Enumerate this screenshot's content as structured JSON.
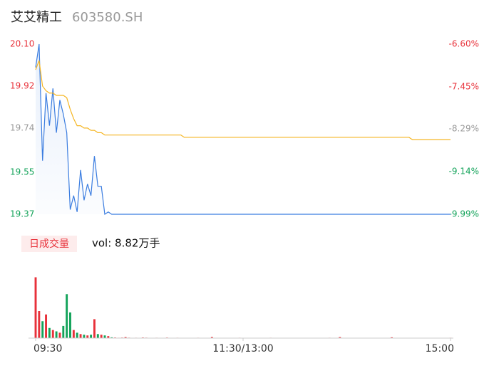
{
  "chart_data": {
    "type": "line",
    "title": "艾艾精工",
    "subtitle": "603580.SH",
    "categories": [
      "09:30",
      null,
      null,
      null,
      null,
      null,
      null,
      null,
      null,
      null,
      null,
      null,
      null,
      null,
      null,
      null,
      null,
      null,
      null,
      null,
      null,
      null,
      null,
      null,
      null,
      null,
      null,
      null,
      null,
      null,
      null,
      null,
      null,
      null,
      null,
      null,
      null,
      null,
      null,
      null,
      null,
      null,
      null,
      null,
      null,
      null,
      null,
      null,
      null,
      null,
      null,
      null,
      null,
      null,
      null,
      null,
      null,
      null,
      null,
      null,
      "11:30/13:00",
      null,
      null,
      null,
      null,
      null,
      null,
      null,
      null,
      null,
      null,
      null,
      null,
      null,
      null,
      null,
      null,
      null,
      null,
      null,
      null,
      null,
      null,
      null,
      null,
      null,
      null,
      null,
      null,
      null,
      null,
      null,
      null,
      null,
      null,
      null,
      null,
      null,
      null,
      null,
      null,
      null,
      null,
      null,
      null,
      null,
      null,
      null,
      null,
      null,
      null,
      null,
      null,
      null,
      null,
      null,
      null,
      null,
      null,
      null,
      "15:00"
    ],
    "series": [
      {
        "name": "price",
        "color": "#3b7de0",
        "values": [
          20.0,
          20.1,
          19.6,
          19.89,
          19.75,
          19.91,
          19.72,
          19.86,
          19.8,
          19.72,
          19.39,
          19.45,
          19.38,
          19.56,
          19.43,
          19.5,
          19.45,
          19.62,
          19.49,
          19.49,
          19.37,
          19.38,
          19.37,
          19.37,
          19.37,
          19.37,
          19.37,
          19.37,
          19.37,
          19.37,
          19.37,
          19.37,
          19.37,
          19.37,
          19.37,
          19.37,
          19.37,
          19.37,
          19.37,
          19.37,
          19.37,
          19.37,
          19.37,
          19.37,
          19.37,
          19.37,
          19.37,
          19.37,
          19.37,
          19.37,
          19.37,
          19.37,
          19.37,
          19.37,
          19.37,
          19.37,
          19.37,
          19.37,
          19.37,
          19.37,
          19.37,
          19.37,
          19.37,
          19.37,
          19.37,
          19.37,
          19.37,
          19.37,
          19.37,
          19.37,
          19.37,
          19.37,
          19.37,
          19.37,
          19.37,
          19.37,
          19.37,
          19.37,
          19.37,
          19.37,
          19.37,
          19.37,
          19.37,
          19.37,
          19.37,
          19.37,
          19.37,
          19.37,
          19.37,
          19.37,
          19.37,
          19.37,
          19.37,
          19.37,
          19.37,
          19.37,
          19.37,
          19.37,
          19.37,
          19.37,
          19.37,
          19.37,
          19.37,
          19.37,
          19.37,
          19.37,
          19.37,
          19.37,
          19.37,
          19.37,
          19.37,
          19.37,
          19.37,
          19.37,
          19.37,
          19.37,
          19.37,
          19.37,
          19.37,
          19.37,
          19.37
        ]
      },
      {
        "name": "average",
        "color": "#f5b623",
        "values": [
          19.99,
          20.03,
          19.92,
          19.9,
          19.89,
          19.89,
          19.88,
          19.88,
          19.88,
          19.87,
          19.82,
          19.78,
          19.75,
          19.75,
          19.74,
          19.74,
          19.73,
          19.73,
          19.72,
          19.72,
          19.71,
          19.71,
          19.71,
          19.71,
          19.71,
          19.71,
          19.71,
          19.71,
          19.71,
          19.71,
          19.71,
          19.71,
          19.71,
          19.71,
          19.71,
          19.71,
          19.71,
          19.71,
          19.71,
          19.71,
          19.71,
          19.71,
          19.71,
          19.7,
          19.7,
          19.7,
          19.7,
          19.7,
          19.7,
          19.7,
          19.7,
          19.7,
          19.7,
          19.7,
          19.7,
          19.7,
          19.7,
          19.7,
          19.7,
          19.7,
          19.7,
          19.7,
          19.7,
          19.7,
          19.7,
          19.7,
          19.7,
          19.7,
          19.7,
          19.7,
          19.7,
          19.7,
          19.7,
          19.7,
          19.7,
          19.7,
          19.7,
          19.7,
          19.7,
          19.7,
          19.7,
          19.7,
          19.7,
          19.7,
          19.7,
          19.7,
          19.7,
          19.7,
          19.7,
          19.7,
          19.7,
          19.7,
          19.7,
          19.7,
          19.7,
          19.7,
          19.7,
          19.7,
          19.7,
          19.7,
          19.7,
          19.7,
          19.7,
          19.7,
          19.7,
          19.7,
          19.7,
          19.7,
          19.7,
          19.69,
          19.69,
          19.69,
          19.69,
          19.69,
          19.69,
          19.69,
          19.69,
          19.69,
          19.69,
          19.69,
          19.69
        ]
      }
    ],
    "ylim": [
      19.37,
      20.1
    ],
    "yticks": [
      {
        "value": 20.1,
        "label": "20.10"
      },
      {
        "value": 19.92,
        "label": "19.92"
      },
      {
        "value": 19.74,
        "label": "19.74"
      },
      {
        "value": 19.55,
        "label": "19.55"
      },
      {
        "value": 19.37,
        "label": "19.37"
      }
    ],
    "y2lim": [
      -9.99,
      -6.6
    ],
    "y2ticks": [
      {
        "value": -6.6,
        "label": "-6.60%"
      },
      {
        "value": -7.45,
        "label": "-7.45%"
      },
      {
        "value": -8.29,
        "label": "-8.29%"
      },
      {
        "value": -9.14,
        "label": "-9.14%"
      },
      {
        "value": -9.99,
        "label": "-9.99%"
      }
    ],
    "tick_colors": [
      "#e8313a",
      "#e8313a",
      "#999999",
      "#13a35a",
      "#13a35a"
    ],
    "volume": {
      "title": "日成交量",
      "subtitle": "vol: 8.82万手",
      "up_color": "#e8313a",
      "down_color": "#13a35a",
      "ylim": [
        0,
        10000
      ],
      "values": [
        9000,
        4000,
        2500,
        3500,
        1500,
        1200,
        1000,
        800,
        1800,
        6500,
        3800,
        1200,
        800,
        600,
        500,
        400,
        500,
        2800,
        600,
        500,
        400,
        300,
        120,
        90,
        60,
        80,
        150,
        70,
        50,
        60,
        40,
        90,
        70,
        50,
        40,
        60,
        30,
        50,
        80,
        40,
        30,
        60,
        50,
        40,
        30,
        50,
        40,
        60,
        30,
        50,
        40,
        160,
        30,
        40,
        50,
        40,
        30,
        50,
        40,
        60,
        30,
        40,
        50,
        30,
        40,
        50,
        30,
        40,
        60,
        40,
        30,
        50,
        40,
        30,
        40,
        50,
        30,
        40,
        30,
        50,
        40,
        30,
        40,
        50,
        30,
        60,
        40,
        30,
        150,
        40,
        30,
        50,
        40,
        30,
        40,
        50,
        30,
        40,
        30,
        40,
        30,
        50,
        40,
        120,
        30,
        40,
        50,
        30,
        40,
        30,
        30,
        40,
        50,
        30,
        40,
        30,
        40,
        50,
        30,
        40,
        60
      ]
    }
  }
}
